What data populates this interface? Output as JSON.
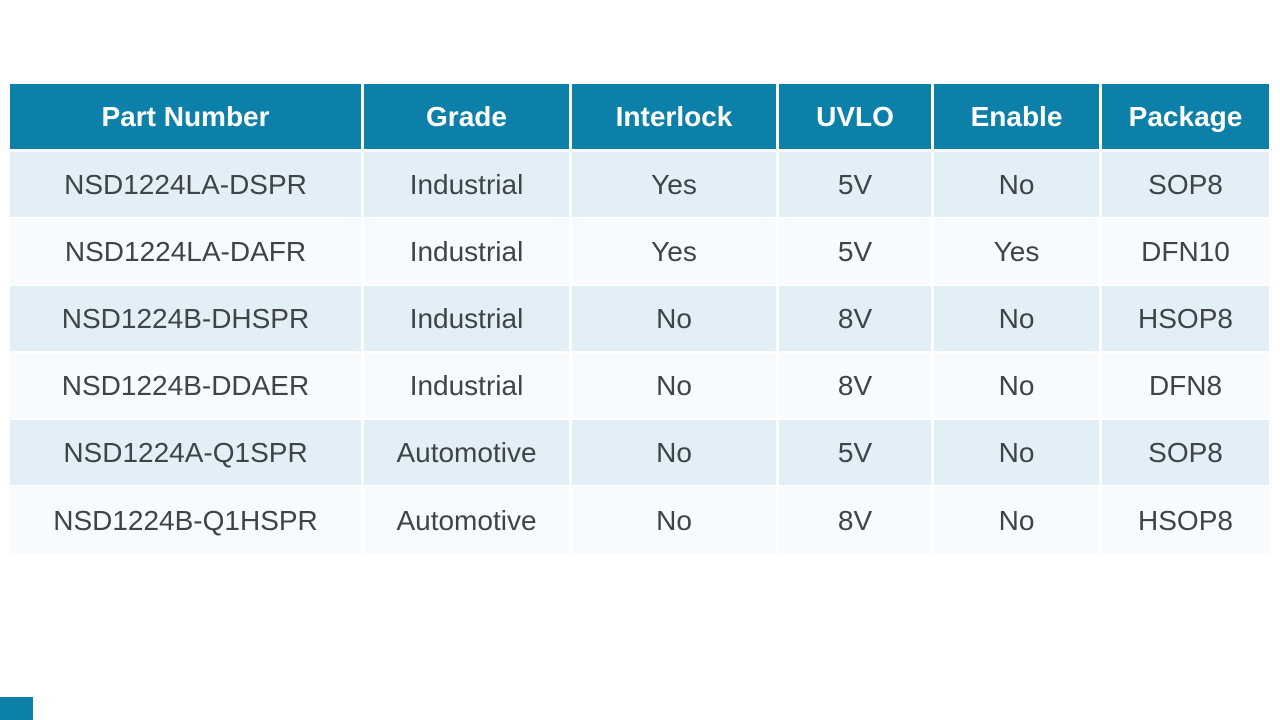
{
  "colors": {
    "header_bg": "#0C80A9",
    "header_text": "#FFFFFF",
    "row_alt": "#E3EFF7",
    "row_base": "#F8FBFD",
    "body_text": "#3F4447",
    "page_bg": "#FFFFFF"
  },
  "table": {
    "columns": [
      "Part Number",
      "Grade",
      "Interlock",
      "UVLO",
      "Enable",
      "Package"
    ],
    "rows": [
      [
        "NSD1224LA-DSPR",
        "Industrial",
        "Yes",
        "5V",
        "No",
        "SOP8"
      ],
      [
        "NSD1224LA-DAFR",
        "Industrial",
        "Yes",
        "5V",
        "Yes",
        "DFN10"
      ],
      [
        "NSD1224B-DHSPR",
        "Industrial",
        "No",
        "8V",
        "No",
        "HSOP8"
      ],
      [
        "NSD1224B-DDAER",
        "Industrial",
        "No",
        "8V",
        "No",
        "DFN8"
      ],
      [
        "NSD1224A-Q1SPR",
        "Automotive",
        "No",
        "5V",
        "No",
        "SOP8"
      ],
      [
        "NSD1224B-Q1HSPR",
        "Automotive",
        "No",
        "8V",
        "No",
        "HSOP8"
      ]
    ]
  }
}
